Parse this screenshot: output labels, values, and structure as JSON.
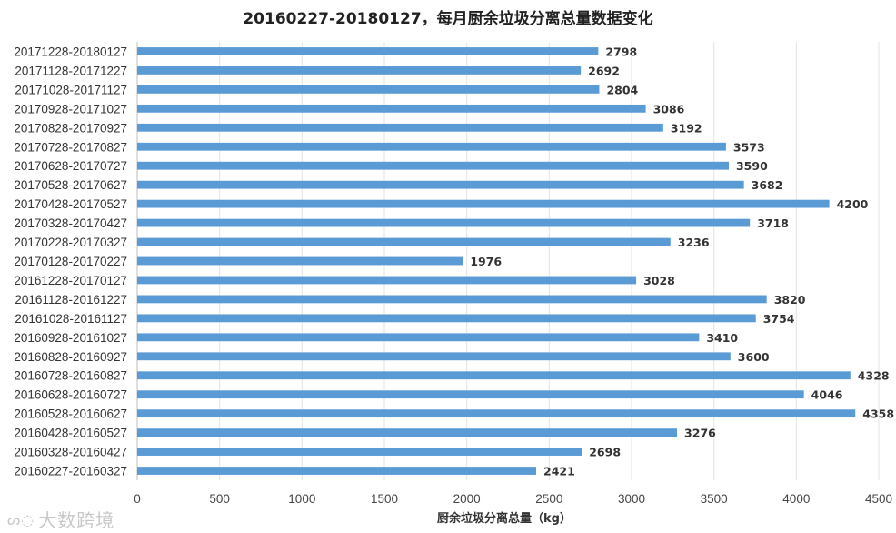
{
  "watermark": {
    "text": "大数跨境"
  },
  "chart_data": {
    "type": "bar",
    "orientation": "horizontal",
    "title": "20160227-20180127，每月厨余垃圾分离总量数据变化",
    "xlabel": "厨余垃圾分离总量（kg）",
    "ylabel": "",
    "xlim": [
      0,
      4500
    ],
    "xticks": [
      0,
      500,
      1000,
      1500,
      2000,
      2500,
      3000,
      3500,
      4000,
      4500
    ],
    "grid": "vertical",
    "bar_color": "#5b9bd5",
    "categories": [
      "20171228-20180127",
      "20171128-20171227",
      "20171028-20171127",
      "20170928-20171027",
      "20170828-20170927",
      "20170728-20170827",
      "20170628-20170727",
      "20170528-20170627",
      "20170428-20170527",
      "20170328-20170427",
      "20170228-20170327",
      "20170128-20170227",
      "20161228-20170127",
      "20161128-20161227",
      "20161028-20161127",
      "20160928-20161027",
      "20160828-20160927",
      "20160728-20160827",
      "20160628-20160727",
      "20160528-20160627",
      "20160428-20160527",
      "20160328-20160427",
      "20160227-20160327"
    ],
    "values": [
      2798,
      2692,
      2804,
      3086,
      3192,
      3573,
      3590,
      3682,
      4200,
      3718,
      3236,
      1976,
      3028,
      3820,
      3754,
      3410,
      3600,
      4328,
      4046,
      4358,
      3276,
      2698,
      2421
    ]
  }
}
